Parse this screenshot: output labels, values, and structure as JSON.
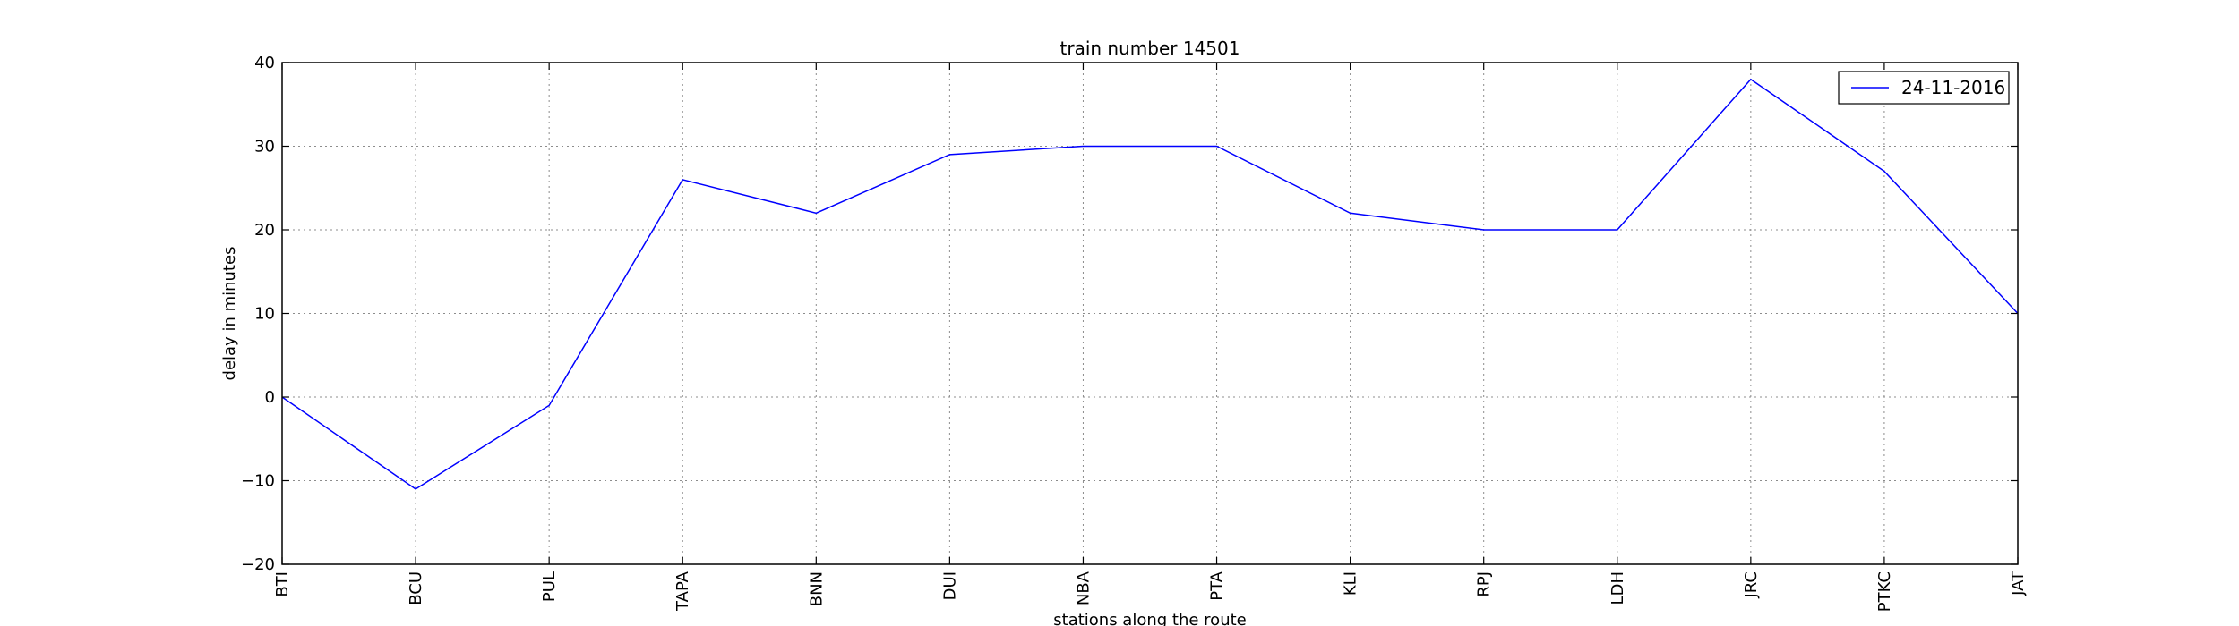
{
  "chart_data": {
    "type": "line",
    "title": "train number 14501",
    "xlabel": "stations along the route",
    "ylabel": "delay in minutes",
    "categories": [
      "BTI",
      "BCU",
      "PUL",
      "TAPA",
      "BNN",
      "DUI",
      "NBA",
      "PTA",
      "KLI",
      "RPJ",
      "LDH",
      "JRC",
      "PTKC",
      "JAT"
    ],
    "series": [
      {
        "name": "24-11-2016",
        "color": "#0000ff",
        "values": [
          0,
          -11,
          -1,
          26,
          22,
          29,
          30,
          30,
          22,
          20,
          20,
          38,
          27,
          10
        ]
      }
    ],
    "ylim": [
      -20,
      40
    ],
    "yticks": [
      -20,
      -10,
      0,
      10,
      20,
      30,
      40
    ],
    "ytick_labels": [
      "−20",
      "−10",
      "0",
      "10",
      "20",
      "30",
      "40"
    ],
    "grid": true,
    "legend": "top-right"
  }
}
